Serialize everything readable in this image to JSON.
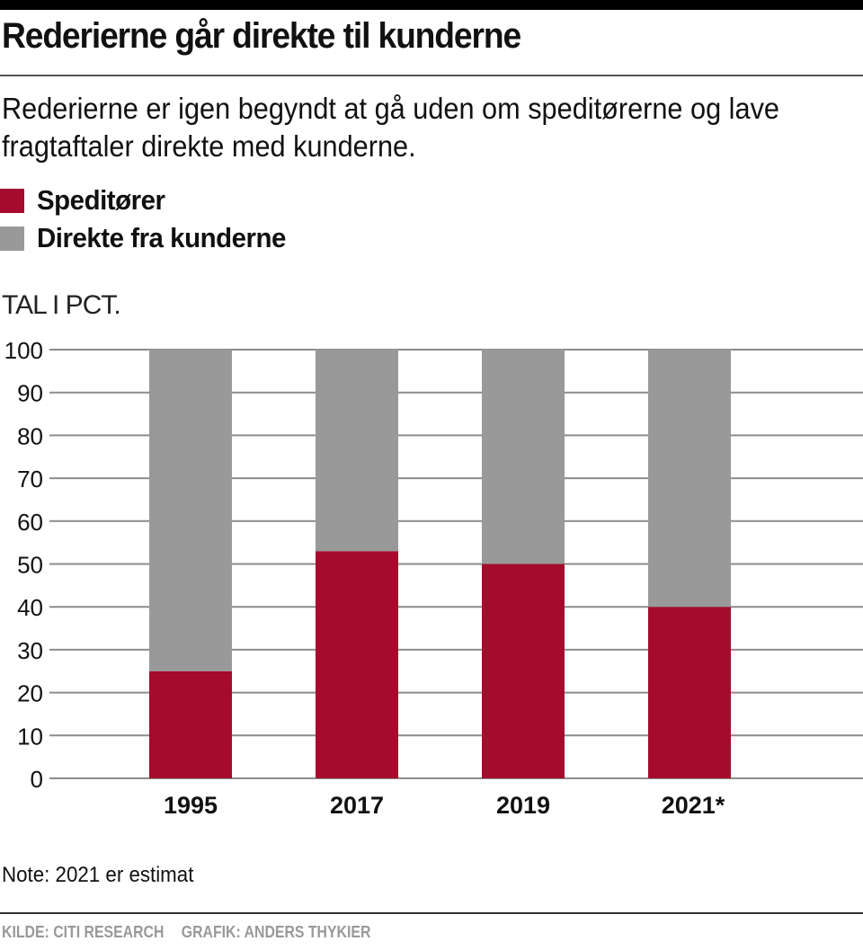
{
  "header": {
    "title": "Rederierne går direkte til kunderne",
    "subtitle": "Rederierne er igen begyndt at gå uden om speditørerne og lave fragtaftaler direkte med kunderne."
  },
  "colors": {
    "speditorer": "#a50b2d",
    "direkte": "#999999",
    "grid": "#8c8c8c"
  },
  "footer": {
    "note": "Note: 2021 er estimat",
    "source": "KILDE: CITI RESEARCH",
    "graphic": "GRAFIK: ANDERS THYKIER"
  },
  "chart_data": {
    "type": "bar",
    "stacked": true,
    "title": "Rederierne går direkte til kunderne",
    "ylabel": "TAL I PCT.",
    "xlabel": "",
    "ylim": [
      0,
      100
    ],
    "yticks": [
      0,
      10,
      20,
      30,
      40,
      50,
      60,
      70,
      80,
      90,
      100
    ],
    "grid": true,
    "legend_position": "top-left",
    "categories": [
      "1995",
      "2017",
      "2019",
      "2021*"
    ],
    "series": [
      {
        "name": "Speditører",
        "values": [
          25,
          53,
          50,
          40
        ]
      },
      {
        "name": "Direkte fra kunderne",
        "values": [
          75,
          47,
          50,
          60
        ]
      }
    ]
  }
}
